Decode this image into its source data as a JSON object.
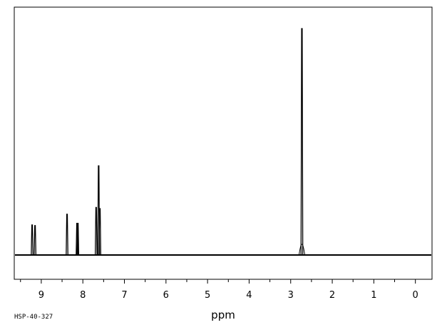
{
  "chart_data": {
    "type": "line",
    "title": "",
    "xlabel": "ppm",
    "ylabel": "",
    "xlim": [
      9.65,
      -0.4
    ],
    "x_reversed": true,
    "ylim": [
      0,
      1
    ],
    "grid": false,
    "legend": "none",
    "tick_labels": [
      "9",
      "8",
      "7",
      "6",
      "5",
      "4",
      "3",
      "2",
      "1",
      "0"
    ],
    "tick_values": [
      9,
      8,
      7,
      6,
      5,
      4,
      3,
      2,
      1,
      0
    ],
    "minor_tick_step": 0.5,
    "peaks": [
      {
        "ppm": 9.22,
        "intensity": 0.133
      },
      {
        "ppm": 9.15,
        "intensity": 0.13
      },
      {
        "ppm": 8.38,
        "intensity": 0.18
      },
      {
        "ppm": 8.14,
        "intensity": 0.14
      },
      {
        "ppm": 8.12,
        "intensity": 0.14
      },
      {
        "ppm": 7.68,
        "intensity": 0.21
      },
      {
        "ppm": 7.62,
        "intensity": 0.394
      },
      {
        "ppm": 7.59,
        "intensity": 0.205
      },
      {
        "ppm": 2.73,
        "intensity": 1.0
      }
    ],
    "line_color": "#000000"
  },
  "sample_code": "HSP-40-327"
}
